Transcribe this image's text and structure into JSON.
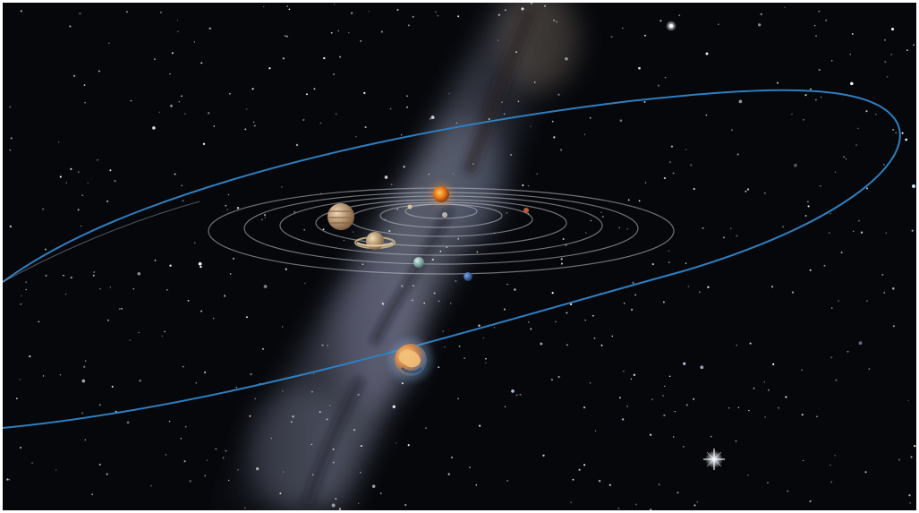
{
  "scene": {
    "background_color": "#05070b",
    "milky_way_color": "#8a8fa6",
    "orbit_color": "#b9bcc4",
    "highlight_orbit_color": "#2f7fbf",
    "objects": [
      {
        "name": "sun",
        "color": "#e0701a"
      },
      {
        "name": "jupiter",
        "color": "#c9a27a"
      },
      {
        "name": "saturn",
        "color": "#c8a275"
      },
      {
        "name": "uranus",
        "color": "#8fb3b0"
      },
      {
        "name": "neptune",
        "color": "#2d5fa8"
      },
      {
        "name": "distant-planet",
        "color": "#d8894a"
      },
      {
        "name": "bright-star",
        "color": "#ffffff"
      }
    ]
  }
}
